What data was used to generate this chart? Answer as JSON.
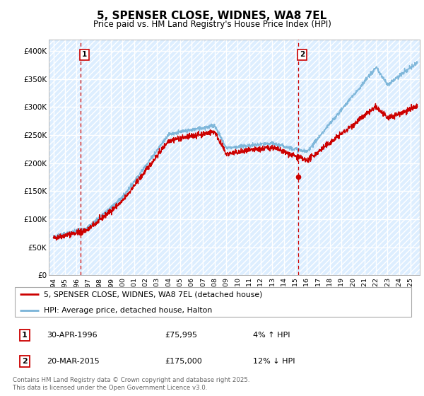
{
  "title": "5, SPENSER CLOSE, WIDNES, WA8 7EL",
  "subtitle": "Price paid vs. HM Land Registry's House Price Index (HPI)",
  "ylim": [
    0,
    420000
  ],
  "yticks": [
    0,
    50000,
    100000,
    150000,
    200000,
    250000,
    300000,
    350000,
    400000
  ],
  "ytick_labels": [
    "£0",
    "£50K",
    "£100K",
    "£150K",
    "£200K",
    "£250K",
    "£300K",
    "£350K",
    "£400K"
  ],
  "xlim_start": 1993.6,
  "xlim_end": 2025.8,
  "hpi_color": "#7ab4d8",
  "price_color": "#cc0000",
  "bg_color": "#ddeeff",
  "marker1_year": 1996.33,
  "marker1_price": 75995,
  "marker2_year": 2015.22,
  "marker2_price": 175000,
  "legend_line1": "5, SPENSER CLOSE, WIDNES, WA8 7EL (detached house)",
  "legend_line2": "HPI: Average price, detached house, Halton",
  "marker1_label": "1",
  "marker2_label": "2",
  "marker1_date": "30-APR-1996",
  "marker1_amount": "£75,995",
  "marker1_change": "4% ↑ HPI",
  "marker2_date": "20-MAR-2015",
  "marker2_amount": "£175,000",
  "marker2_change": "12% ↓ HPI",
  "footer": "Contains HM Land Registry data © Crown copyright and database right 2025.\nThis data is licensed under the Open Government Licence v3.0."
}
